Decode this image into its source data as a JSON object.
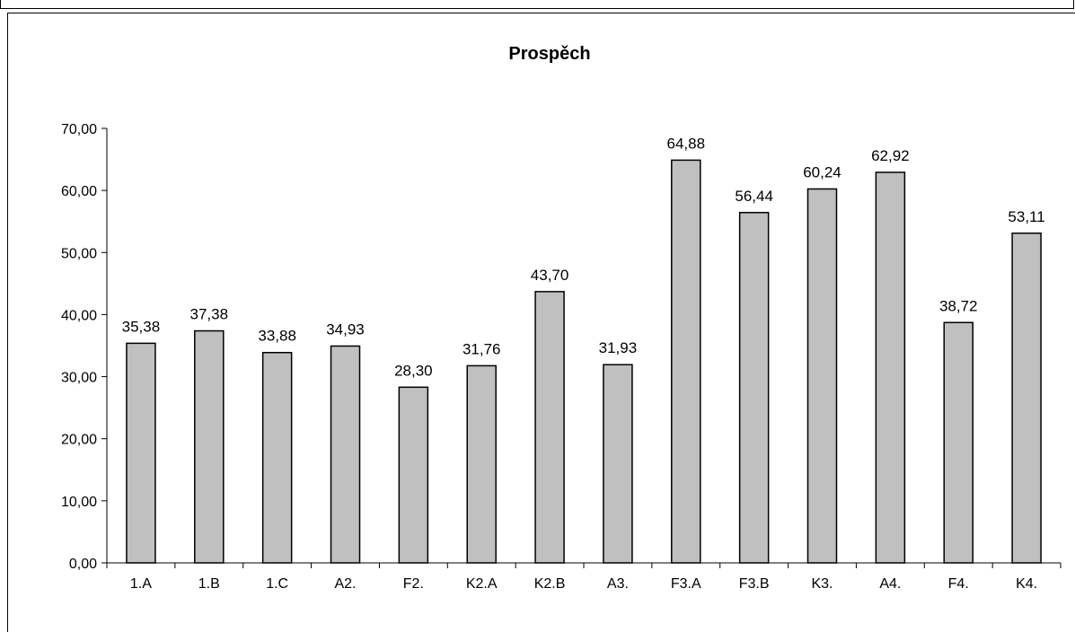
{
  "chart_data": {
    "type": "bar",
    "title": "Prospěch",
    "categories": [
      "1.A",
      "1.B",
      "1.C",
      "A2.",
      "F2.",
      "K2.A",
      "K2.B",
      "A3.",
      "F3.A",
      "F3.B",
      "K3.",
      "A4.",
      "F4.",
      "K4."
    ],
    "values": [
      35.38,
      37.38,
      33.88,
      34.93,
      28.3,
      31.76,
      43.7,
      31.93,
      64.88,
      56.44,
      60.24,
      62.92,
      38.72,
      53.11
    ],
    "data_labels": [
      "35,38",
      "37,38",
      "33,88",
      "34,93",
      "28,30",
      "31,76",
      "43,70",
      "31,93",
      "64,88",
      "56,44",
      "60,24",
      "62,92",
      "38,72",
      "53,11"
    ],
    "y_ticks": [
      0,
      10,
      20,
      30,
      40,
      50,
      60,
      70
    ],
    "y_tick_labels": [
      "0,00",
      "10,00",
      "20,00",
      "30,00",
      "40,00",
      "50,00",
      "60,00",
      "70,00"
    ],
    "xlabel": "",
    "ylabel": "",
    "ylim": [
      0,
      70
    ],
    "grid": false,
    "legend": "none",
    "bar_color": "#c0c0c0",
    "bar_stroke": "#000000"
  }
}
